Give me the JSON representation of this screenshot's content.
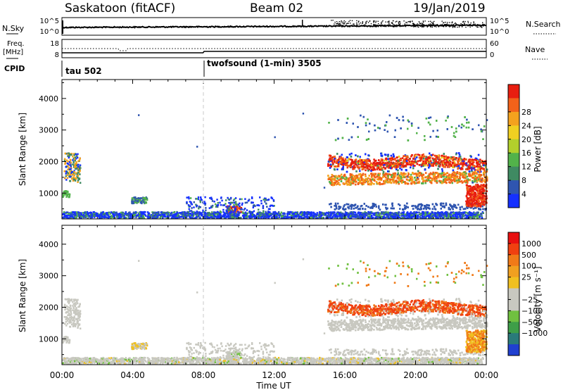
{
  "header": {
    "station": "Saskatoon (fitACF)",
    "beam": "Beam 02",
    "date": "19/Jan/2019"
  },
  "top_panels": {
    "nsky_label": "N.Sky",
    "nsky_ticks": [
      "10^5",
      "10^0"
    ],
    "nsearch_label": "N.Search",
    "nsearch_ticks": [
      "10^5",
      "10^0"
    ],
    "freq_label": "Freq.",
    "freq_unit": "[MHz]",
    "freq_ticks": [
      "18",
      "8"
    ],
    "nave_label": "Nave",
    "nave_ticks": [
      "60",
      "0"
    ],
    "cpid_label": "CPID",
    "cpid_entries": [
      "tau 502",
      "twofsound (1-min) 3505"
    ],
    "cpid_switch_hours": [
      0.05,
      8.0
    ]
  },
  "x_axis": {
    "label": "Time UT",
    "ticks": [
      "00:00",
      "04:00",
      "08:00",
      "12:00",
      "16:00",
      "20:00",
      "00:00"
    ],
    "range_hours": [
      0,
      24
    ],
    "minor_step_hours": 1,
    "gap_line_hour": 8.0
  },
  "chart_data": [
    {
      "type": "heatmap",
      "name": "power",
      "ylabel": "Slant Range [km]",
      "ylim": [
        180,
        4600
      ],
      "yticks": [
        1000,
        2000,
        3000,
        4000
      ],
      "colorbar_label": "Power [dB]",
      "colorbar_ticks": [
        "4",
        "8",
        "12",
        "16",
        "20",
        "24",
        "28"
      ],
      "colorbar_colors": [
        "#1530ff",
        "#2f55b0",
        "#3f8a62",
        "#52b24a",
        "#b2d02c",
        "#f0d021",
        "#f4a21e",
        "#f2621a",
        "#e81e10"
      ]
    },
    {
      "type": "heatmap",
      "name": "velocity",
      "ylabel": "Slant Range [km]",
      "ylim": [
        180,
        4600
      ],
      "yticks": [
        1000,
        2000,
        3000,
        4000
      ],
      "colorbar_label": "Velocity [m s⁻¹]",
      "colorbar_ticks": [
        "1000",
        "500",
        "100",
        "25",
        "−25",
        "−100",
        "−500",
        "−1000"
      ],
      "colorbar_colors": [
        "#2040d0",
        "#2a7a7a",
        "#3e9e48",
        "#70c040",
        "#c8c8c0",
        "#c8c8c0",
        "#f0c020",
        "#f0a020",
        "#f07a18",
        "#f04010",
        "#e81010"
      ]
    }
  ],
  "colors": {
    "ground_scatter": "#c8c8c0",
    "gap_line": "#c8c8c8"
  }
}
